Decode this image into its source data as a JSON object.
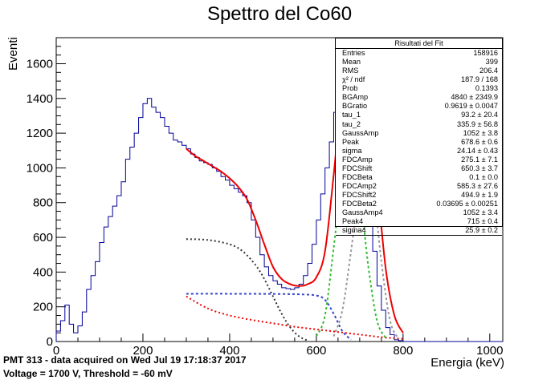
{
  "title": "Spettro del Co60",
  "xlabel": "Energia (keV)",
  "ylabel": "Eventi",
  "footer": {
    "line1": "PMT 313 - data acquired on Wed Jul 19 17:18:37 2017",
    "line2": "Voltage = 1700 V, Threshold = -60 mV"
  },
  "stats_box": {
    "title": "Risultati del Fit",
    "rows": [
      {
        "name": "Entries",
        "value": "158916"
      },
      {
        "name": "Mean",
        "value": "399"
      },
      {
        "name": "RMS",
        "value": "206.4"
      },
      {
        "name": "χ² / ndf",
        "value": "187.9 / 168"
      },
      {
        "name": "Prob",
        "value": "0.1393"
      },
      {
        "name": "BGAmp",
        "value": "4840 ± 2349.9"
      },
      {
        "name": "BGratio",
        "value": "0.9619 ± 0.0047"
      },
      {
        "name": "tau_1",
        "value": "93.2 ± 20.4"
      },
      {
        "name": "tau_2",
        "value": "335.9 ± 56.8"
      },
      {
        "name": "GaussAmp",
        "value": "1052 ± 3.8"
      },
      {
        "name": "Peak",
        "value": "678.6 ± 0.6"
      },
      {
        "name": "sigma",
        "value": "24.14 ± 0.43"
      },
      {
        "name": "FDCAmp",
        "value": "275.1 ± 7.1"
      },
      {
        "name": "FDCShift",
        "value": "650.3 ± 3.7"
      },
      {
        "name": "FDCBeta",
        "value": "0.1 ± 0.0"
      },
      {
        "name": "FDCAmp2",
        "value": "585.3 ± 27.6"
      },
      {
        "name": "FDCShift2",
        "value": "494.9 ± 1.9"
      },
      {
        "name": "FDCBeta2",
        "value": "0.03695 ± 0.00251"
      },
      {
        "name": "GaussAmp4",
        "value": "1052 ± 3.4"
      },
      {
        "name": "Peak4",
        "value": "715 ± 0.4"
      },
      {
        "name": "sigma4",
        "value": "25.9 ± 0.2"
      }
    ]
  },
  "chart_data": {
    "type": "line",
    "title": "Spettro del Co60",
    "xlabel": "Energia (keV)",
    "ylabel": "Eventi",
    "xlim": [
      0,
      1030
    ],
    "ylim": [
      0,
      1750
    ],
    "x_ticks": [
      0,
      200,
      400,
      600,
      800,
      1000
    ],
    "y_ticks": [
      0,
      200,
      400,
      600,
      800,
      1000,
      1200,
      1400,
      1600
    ],
    "grid": false,
    "colors": {
      "histogram": "#000099",
      "fit_total": "#ee0000",
      "background": "#ee0000",
      "compton_edge_1": "#333333",
      "compton_edge_2": "#3344cc",
      "gauss_peak_1": "#33bb33",
      "gauss_peak_2": "#999999"
    },
    "histogram": {
      "x": [
        0,
        10,
        20,
        30,
        40,
        50,
        60,
        70,
        80,
        90,
        100,
        110,
        120,
        130,
        140,
        150,
        160,
        170,
        180,
        190,
        200,
        210,
        220,
        230,
        240,
        250,
        260,
        270,
        280,
        290,
        300,
        310,
        320,
        330,
        340,
        350,
        360,
        370,
        380,
        390,
        400,
        410,
        420,
        430,
        440,
        450,
        460,
        470,
        480,
        490,
        500,
        510,
        520,
        530,
        540,
        550,
        560,
        570,
        580,
        590,
        600,
        610,
        620,
        630,
        640,
        650,
        660,
        670,
        680,
        690,
        700,
        710,
        720,
        730,
        740,
        750,
        760,
        770,
        780,
        790,
        800,
        810,
        820,
        830,
        840,
        850,
        860,
        870,
        880,
        890,
        900,
        910,
        920,
        930,
        940,
        950,
        960,
        970,
        980,
        990,
        1000,
        1010,
        1020
      ],
      "y": [
        60,
        120,
        210,
        100,
        50,
        90,
        170,
        300,
        380,
        460,
        570,
        660,
        720,
        780,
        840,
        920,
        1050,
        1120,
        1200,
        1290,
        1370,
        1400,
        1350,
        1320,
        1290,
        1240,
        1200,
        1160,
        1150,
        1130,
        1110,
        1080,
        1060,
        1040,
        1030,
        1020,
        1000,
        980,
        950,
        930,
        900,
        880,
        860,
        840,
        800,
        700,
        600,
        500,
        430,
        380,
        350,
        330,
        310,
        305,
        300,
        310,
        330,
        380,
        450,
        560,
        700,
        850,
        1000,
        1150,
        1320,
        1450,
        1580,
        1630,
        1610,
        1500,
        1350,
        1100,
        800,
        520,
        320,
        180,
        80,
        40,
        10,
        5,
        0,
        0,
        0,
        0,
        0,
        0,
        0,
        0,
        0,
        0,
        0,
        0,
        0,
        0,
        0,
        0,
        0,
        0,
        0,
        0,
        0,
        0,
        0
      ]
    },
    "series": [
      {
        "name": "fit_total",
        "x": [
          300,
          320,
          340,
          360,
          380,
          400,
          420,
          440,
          460,
          480,
          500,
          520,
          540,
          560,
          580,
          600,
          620,
          640,
          660,
          680,
          700,
          710,
          720,
          740,
          760,
          780,
          800
        ],
        "y": [
          1110,
          1070,
          1040,
          1010,
          980,
          940,
          890,
          820,
          700,
          560,
          430,
          360,
          330,
          320,
          330,
          370,
          520,
          960,
          1450,
          1620,
          1670,
          1610,
          1460,
          930,
          420,
          150,
          50
        ]
      },
      {
        "name": "background",
        "x": [
          300,
          350,
          400,
          450,
          500,
          550,
          600,
          650,
          700,
          750,
          800
        ],
        "y": [
          260,
          190,
          150,
          125,
          105,
          85,
          70,
          55,
          40,
          25,
          15
        ]
      },
      {
        "name": "compton_edge_1",
        "x": [
          300,
          350,
          400,
          430,
          460,
          480,
          500,
          520,
          540,
          560,
          580
        ],
        "y": [
          590,
          585,
          560,
          520,
          440,
          360,
          260,
          160,
          80,
          30,
          5
        ]
      },
      {
        "name": "compton_edge_2",
        "x": [
          300,
          400,
          500,
          560,
          600,
          620,
          640,
          660,
          680
        ],
        "y": [
          275,
          275,
          274,
          272,
          265,
          240,
          160,
          60,
          10
        ]
      },
      {
        "name": "gauss_peak_1",
        "x": [
          600,
          620,
          640,
          660,
          680,
          700,
          720,
          740,
          760
        ],
        "y": [
          30,
          150,
          540,
          950,
          1052,
          870,
          430,
          120,
          20
        ]
      },
      {
        "name": "gauss_peak_2",
        "x": [
          640,
          660,
          680,
          700,
          715,
          730,
          750,
          770,
          790
        ],
        "y": [
          30,
          180,
          520,
          900,
          1052,
          920,
          460,
          120,
          15
        ]
      }
    ]
  }
}
